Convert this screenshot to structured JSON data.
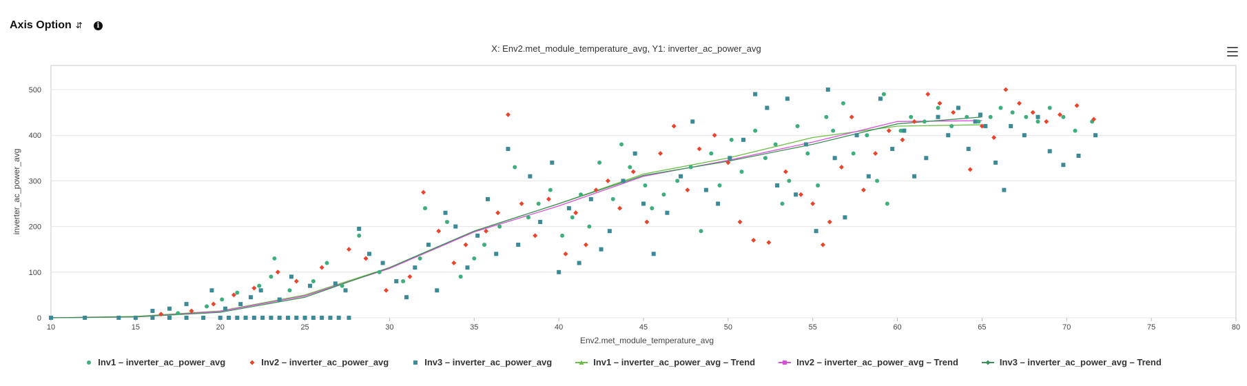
{
  "header": {
    "axis_option_label": "Axis Option"
  },
  "chart_data": {
    "type": "scatter",
    "title": "X: Env2.met_module_temperature_avg, Y1: inverter_ac_power_avg",
    "xlabel": "Env2.met_module_temperature_avg",
    "ylabel": "inverter_ac_power_avg",
    "xlim": [
      10,
      80
    ],
    "ylim": [
      0,
      550
    ],
    "xticks": [
      10,
      15,
      20,
      25,
      30,
      35,
      40,
      45,
      50,
      55,
      60,
      65,
      70,
      75,
      80
    ],
    "yticks": [
      0,
      100,
      200,
      300,
      400,
      500
    ],
    "grid": "horizontal",
    "legend": "bottom-center",
    "series": [
      {
        "name": "Inv1 – inverter_ac_power_avg",
        "kind": "scatter",
        "marker": "circle",
        "color": "#3fae7d",
        "points": [
          [
            17.5,
            10
          ],
          [
            19.2,
            25
          ],
          [
            20.1,
            40
          ],
          [
            21,
            55
          ],
          [
            22.3,
            70
          ],
          [
            23,
            90
          ],
          [
            23.2,
            130
          ],
          [
            24.1,
            60
          ],
          [
            25.5,
            80
          ],
          [
            26.3,
            120
          ],
          [
            27.2,
            70
          ],
          [
            28.2,
            180
          ],
          [
            29.4,
            100
          ],
          [
            30.8,
            80
          ],
          [
            31.8,
            130
          ],
          [
            32.1,
            240
          ],
          [
            33.4,
            210
          ],
          [
            34.2,
            90
          ],
          [
            35,
            130
          ],
          [
            35.6,
            160
          ],
          [
            36.5,
            200
          ],
          [
            37.4,
            330
          ],
          [
            38.2,
            220
          ],
          [
            38.8,
            250
          ],
          [
            39.5,
            280
          ],
          [
            40.2,
            180
          ],
          [
            40.8,
            220
          ],
          [
            41.3,
            270
          ],
          [
            41.8,
            200
          ],
          [
            42.4,
            340
          ],
          [
            43.2,
            260
          ],
          [
            43.7,
            380
          ],
          [
            44.2,
            330
          ],
          [
            45.1,
            290
          ],
          [
            45.5,
            240
          ],
          [
            46.2,
            270
          ],
          [
            47,
            300
          ],
          [
            47.8,
            330
          ],
          [
            48.4,
            190
          ],
          [
            49,
            360
          ],
          [
            49.5,
            290
          ],
          [
            50.2,
            390
          ],
          [
            50.8,
            320
          ],
          [
            51.6,
            410
          ],
          [
            52.2,
            350
          ],
          [
            52.8,
            380
          ],
          [
            53.2,
            250
          ],
          [
            53.6,
            300
          ],
          [
            54.1,
            420
          ],
          [
            54.7,
            360
          ],
          [
            55.3,
            290
          ],
          [
            55.8,
            440
          ],
          [
            56.2,
            410
          ],
          [
            56.8,
            470
          ],
          [
            57.4,
            360
          ],
          [
            58.2,
            400
          ],
          [
            58.8,
            300
          ],
          [
            59.2,
            490
          ],
          [
            59.4,
            250
          ],
          [
            60.2,
            410
          ],
          [
            60.8,
            440
          ],
          [
            61.6,
            430
          ],
          [
            62.4,
            460
          ],
          [
            63.2,
            420
          ],
          [
            64.1,
            440
          ],
          [
            64.8,
            430
          ],
          [
            65.5,
            440
          ],
          [
            66.1,
            460
          ],
          [
            66.8,
            450
          ],
          [
            67.6,
            440
          ],
          [
            68.3,
            430
          ],
          [
            69,
            460
          ],
          [
            69.8,
            440
          ],
          [
            70.5,
            410
          ],
          [
            71.5,
            430
          ]
        ]
      },
      {
        "name": "Inv2 – inverter_ac_power_avg",
        "kind": "scatter",
        "marker": "diamond",
        "color": "#e8452c",
        "points": [
          [
            16.5,
            8
          ],
          [
            18.3,
            15
          ],
          [
            19.6,
            30
          ],
          [
            20.8,
            50
          ],
          [
            22,
            65
          ],
          [
            23.4,
            100
          ],
          [
            24.5,
            80
          ],
          [
            26,
            110
          ],
          [
            27.6,
            150
          ],
          [
            28.6,
            130
          ],
          [
            29.8,
            60
          ],
          [
            31.2,
            90
          ],
          [
            32,
            275
          ],
          [
            32.9,
            190
          ],
          [
            33.8,
            120
          ],
          [
            34.5,
            160
          ],
          [
            35.7,
            190
          ],
          [
            36.4,
            230
          ],
          [
            37,
            445
          ],
          [
            37.8,
            250
          ],
          [
            38.6,
            180
          ],
          [
            39.4,
            260
          ],
          [
            40.4,
            140
          ],
          [
            41,
            230
          ],
          [
            41.6,
            160
          ],
          [
            42.2,
            280
          ],
          [
            42.9,
            300
          ],
          [
            43.6,
            240
          ],
          [
            44.4,
            320
          ],
          [
            45.2,
            210
          ],
          [
            46,
            360
          ],
          [
            46.8,
            420
          ],
          [
            47.6,
            280
          ],
          [
            48.3,
            370
          ],
          [
            49.2,
            400
          ],
          [
            50,
            340
          ],
          [
            50.7,
            210
          ],
          [
            51.5,
            170
          ],
          [
            52.4,
            165
          ],
          [
            53.4,
            320
          ],
          [
            54.3,
            270
          ],
          [
            55,
            250
          ],
          [
            55.6,
            160
          ],
          [
            56,
            210
          ],
          [
            56.7,
            330
          ],
          [
            57.3,
            440
          ],
          [
            58,
            280
          ],
          [
            58.7,
            360
          ],
          [
            59.5,
            410
          ],
          [
            60.3,
            390
          ],
          [
            61,
            430
          ],
          [
            61.8,
            490
          ],
          [
            62.5,
            470
          ],
          [
            63.3,
            450
          ],
          [
            64.3,
            325
          ],
          [
            65,
            420
          ],
          [
            65.7,
            395
          ],
          [
            66.4,
            500
          ],
          [
            67.2,
            470
          ],
          [
            68,
            450
          ],
          [
            68.8,
            430
          ],
          [
            69.6,
            445
          ],
          [
            70.6,
            465
          ],
          [
            71.6,
            435
          ]
        ]
      },
      {
        "name": "Inv3 – inverter_ac_power_avg",
        "kind": "scatter",
        "marker": "square",
        "color": "#3c8a96",
        "points": [
          [
            10,
            0
          ],
          [
            12,
            0
          ],
          [
            14,
            0
          ],
          [
            15,
            0
          ],
          [
            16,
            0
          ],
          [
            17,
            0
          ],
          [
            18,
            0
          ],
          [
            19,
            0
          ],
          [
            20,
            0
          ],
          [
            20.5,
            0
          ],
          [
            21,
            0
          ],
          [
            21.5,
            0
          ],
          [
            22,
            0
          ],
          [
            22.5,
            0
          ],
          [
            23,
            0
          ],
          [
            23.5,
            0
          ],
          [
            24,
            0
          ],
          [
            24.5,
            0
          ],
          [
            25,
            0
          ],
          [
            25.5,
            0
          ],
          [
            26,
            0
          ],
          [
            26.5,
            0
          ],
          [
            27,
            0
          ],
          [
            27.6,
            0
          ],
          [
            16,
            15
          ],
          [
            17,
            20
          ],
          [
            18,
            30
          ],
          [
            19.5,
            60
          ],
          [
            20.3,
            20
          ],
          [
            21.2,
            30
          ],
          [
            21.8,
            45
          ],
          [
            22.4,
            60
          ],
          [
            23.5,
            40
          ],
          [
            24.2,
            90
          ],
          [
            25.3,
            70
          ],
          [
            26.8,
            75
          ],
          [
            27.4,
            60
          ],
          [
            28.2,
            195
          ],
          [
            28.8,
            140
          ],
          [
            29.6,
            120
          ],
          [
            30.4,
            80
          ],
          [
            31,
            45
          ],
          [
            31.5,
            110
          ],
          [
            32.3,
            160
          ],
          [
            32.8,
            60
          ],
          [
            33.3,
            230
          ],
          [
            33.9,
            200
          ],
          [
            34.6,
            110
          ],
          [
            35.2,
            180
          ],
          [
            35.8,
            260
          ],
          [
            36.3,
            140
          ],
          [
            37,
            370
          ],
          [
            37.6,
            160
          ],
          [
            38.3,
            310
          ],
          [
            38.9,
            210
          ],
          [
            39.6,
            340
          ],
          [
            40,
            100
          ],
          [
            40.6,
            240
          ],
          [
            41.2,
            120
          ],
          [
            41.9,
            260
          ],
          [
            42.5,
            150
          ],
          [
            43,
            190
          ],
          [
            43.8,
            300
          ],
          [
            44.5,
            360
          ],
          [
            45,
            250
          ],
          [
            45.6,
            140
          ],
          [
            46.4,
            230
          ],
          [
            47.2,
            310
          ],
          [
            47.9,
            430
          ],
          [
            48.7,
            280
          ],
          [
            49.4,
            250
          ],
          [
            50.1,
            350
          ],
          [
            50.9,
            390
          ],
          [
            51.6,
            490
          ],
          [
            52.3,
            460
          ],
          [
            52.9,
            290
          ],
          [
            53.5,
            480
          ],
          [
            54,
            270
          ],
          [
            54.6,
            380
          ],
          [
            55.2,
            190
          ],
          [
            55.9,
            500
          ],
          [
            56.3,
            350
          ],
          [
            56.9,
            220
          ],
          [
            57.6,
            400
          ],
          [
            58.3,
            310
          ],
          [
            59,
            480
          ],
          [
            59.7,
            370
          ],
          [
            60.4,
            410
          ],
          [
            61,
            310
          ],
          [
            61.7,
            350
          ],
          [
            62.4,
            440
          ],
          [
            63,
            400
          ],
          [
            63.6,
            460
          ],
          [
            64.2,
            370
          ],
          [
            64.6,
            430
          ],
          [
            64.9,
            445
          ],
          [
            65.2,
            420
          ],
          [
            65.8,
            340
          ],
          [
            66.3,
            280
          ],
          [
            66.7,
            420
          ],
          [
            67.5,
            400
          ],
          [
            68.3,
            440
          ],
          [
            69,
            365
          ],
          [
            69.8,
            335
          ],
          [
            70.7,
            355
          ],
          [
            71.7,
            400
          ]
        ]
      },
      {
        "name": "Inv1 – inverter_ac_power_avg – Trend",
        "kind": "line",
        "marker": "triangle",
        "color": "#6cbd45",
        "points": [
          [
            10,
            0
          ],
          [
            15,
            3
          ],
          [
            20,
            15
          ],
          [
            25,
            50
          ],
          [
            30,
            110
          ],
          [
            35,
            190
          ],
          [
            40,
            250
          ],
          [
            45,
            315
          ],
          [
            50,
            350
          ],
          [
            55,
            395
          ],
          [
            60,
            420
          ],
          [
            65,
            423
          ]
        ]
      },
      {
        "name": "Inv2 – inverter_ac_power_avg – Trend",
        "kind": "line",
        "marker": "square",
        "color": "#d94fd9",
        "points": [
          [
            10,
            0
          ],
          [
            15,
            2
          ],
          [
            20,
            14
          ],
          [
            25,
            48
          ],
          [
            30,
            108
          ],
          [
            35,
            188
          ],
          [
            40,
            245
          ],
          [
            45,
            310
          ],
          [
            50,
            345
          ],
          [
            55,
            385
          ],
          [
            60,
            430
          ],
          [
            65,
            432
          ]
        ]
      },
      {
        "name": "Inv3 – inverter_ac_power_avg – Trend",
        "kind": "line",
        "marker": "diamond",
        "color": "#3d8f5a",
        "points": [
          [
            10,
            0
          ],
          [
            15,
            2
          ],
          [
            20,
            12
          ],
          [
            25,
            45
          ],
          [
            30,
            110
          ],
          [
            35,
            190
          ],
          [
            40,
            250
          ],
          [
            45,
            312
          ],
          [
            50,
            343
          ],
          [
            55,
            380
          ],
          [
            60,
            425
          ],
          [
            65,
            440
          ]
        ]
      }
    ]
  }
}
